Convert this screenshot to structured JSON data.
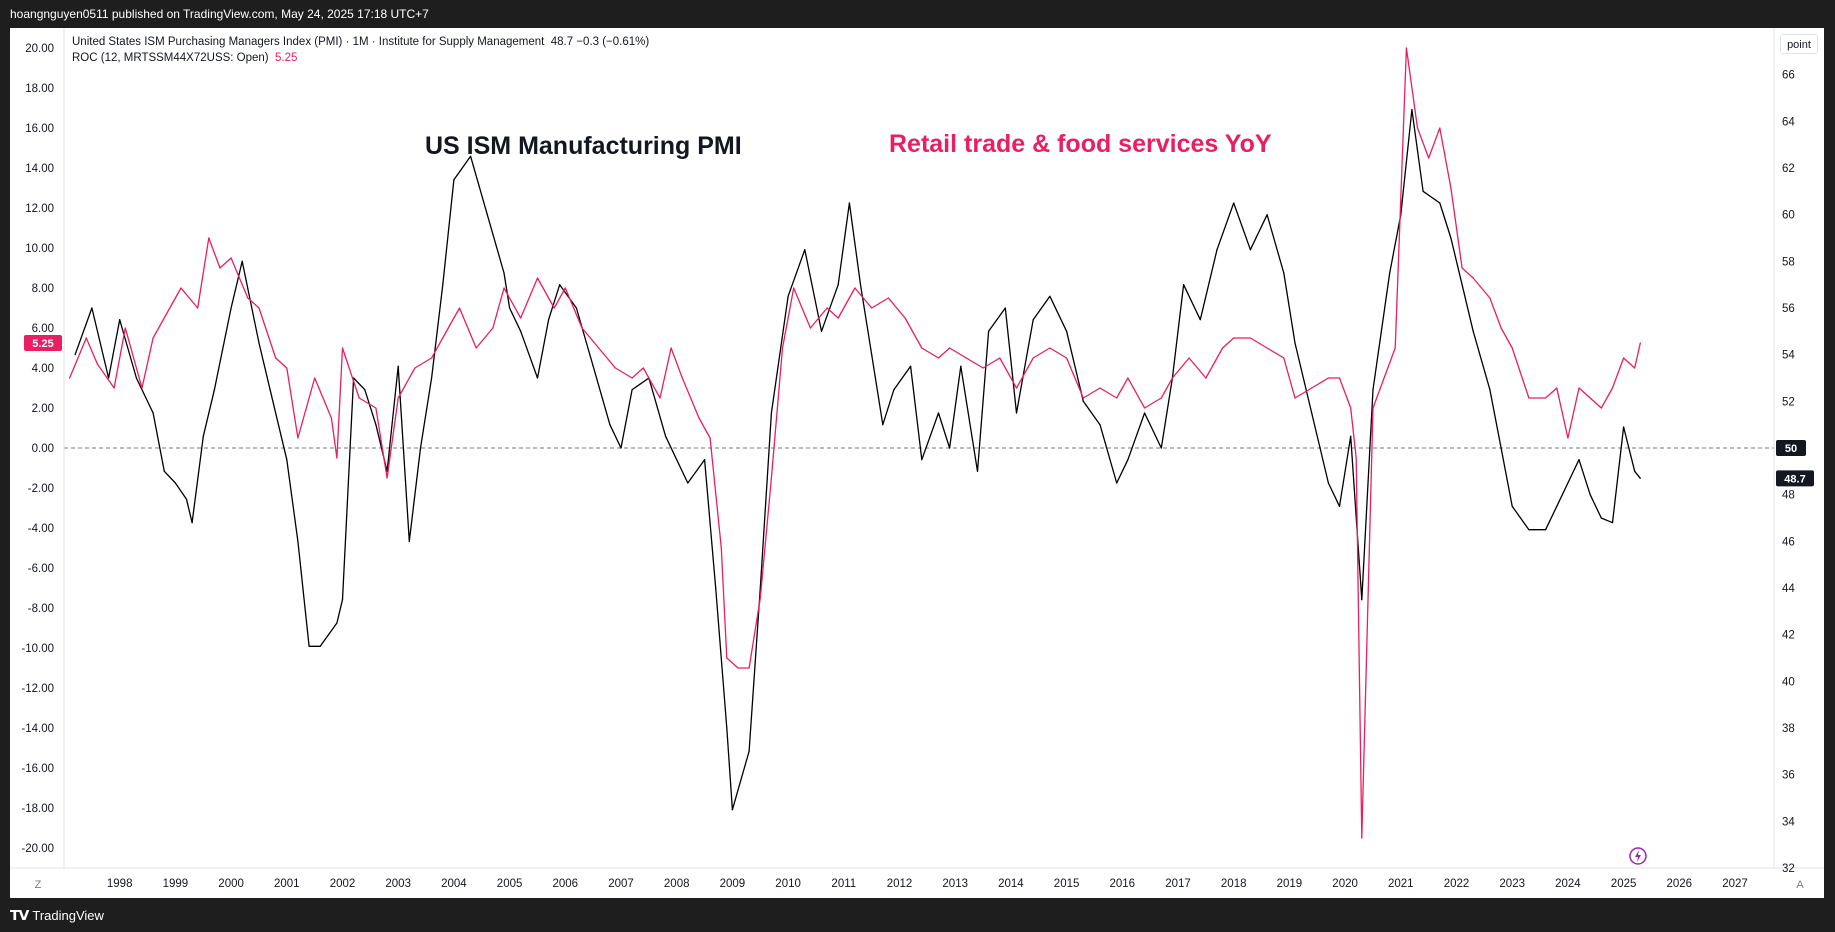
{
  "header": {
    "published": "hoangnguyen0511 published on TradingView.com, May 24, 2025 17:18 UTC+7"
  },
  "legend": {
    "line1": "United States ISM Purchasing Managers Index (PMI) · 1M · Institute for Supply Management",
    "line1_value": "48.7  −0.3 (−0.61%)",
    "line2": "ROC (12, MRTSSM44X72USS: Open)",
    "line2_value": "5.25"
  },
  "annotations": {
    "pmi_title": "US ISM Manufacturing PMI",
    "retail_title": "Retail trade & food services YoY"
  },
  "price_scale": {
    "unit_label": "point"
  },
  "footer": {
    "brand": "TradingView",
    "left_btn": "Z",
    "right_btn": "A"
  },
  "colors": {
    "pmi": "#000000",
    "roc": "#e91e63",
    "zero_line": "#787b86"
  },
  "chart_data": {
    "type": "line",
    "title": "",
    "x_axis": {
      "labels": [
        "1998",
        "1999",
        "2000",
        "2001",
        "2002",
        "2003",
        "2004",
        "2005",
        "2006",
        "2007",
        "2008",
        "2009",
        "2010",
        "2011",
        "2012",
        "2013",
        "2014",
        "2015",
        "2016",
        "2017",
        "2018",
        "2019",
        "2020",
        "2021",
        "2022",
        "2023",
        "2024",
        "2025",
        "2026",
        "2027"
      ],
      "range": [
        1997.0,
        2027.7
      ]
    },
    "left_axis": {
      "series": "ROC (12, MRTSSM44X72USS: Open)",
      "range": [
        -21,
        21
      ],
      "ticks": [
        "20.00",
        "18.00",
        "16.00",
        "14.00",
        "12.00",
        "10.00",
        "8.00",
        "6.00",
        "4.00",
        "2.00",
        "0.00",
        "-2.00",
        "-4.00",
        "-6.00",
        "-8.00",
        "-10.00",
        "-12.00",
        "-14.00",
        "-16.00",
        "-18.00",
        "-20.00"
      ],
      "last_value_badge": "5.25"
    },
    "right_axis": {
      "series": "United States ISM Purchasing Managers Index (PMI)",
      "unit": "point",
      "range": [
        32,
        68
      ],
      "ticks": [
        "66",
        "64",
        "62",
        "60",
        "58",
        "56",
        "54",
        "52",
        "50",
        "48",
        "46",
        "44",
        "42",
        "40",
        "38",
        "36",
        "34",
        "32"
      ],
      "reference_badge": "50",
      "last_value_badge": "48.7"
    },
    "reference_line": {
      "left_value": 0,
      "right_value": 50,
      "style": "dashed"
    },
    "series": [
      {
        "name": "United States ISM Purchasing Managers Index (PMI)",
        "axis": "right",
        "points": [
          [
            1997.2,
            54.0
          ],
          [
            1997.5,
            56.0
          ],
          [
            1997.8,
            53.0
          ],
          [
            1998.0,
            55.5
          ],
          [
            1998.3,
            53.0
          ],
          [
            1998.6,
            51.5
          ],
          [
            1998.8,
            49.0
          ],
          [
            1999.0,
            48.5
          ],
          [
            1999.2,
            47.8
          ],
          [
            1999.3,
            46.8
          ],
          [
            1999.5,
            50.5
          ],
          [
            1999.7,
            52.5
          ],
          [
            2000.0,
            56.0
          ],
          [
            2000.2,
            58.0
          ],
          [
            2000.5,
            54.5
          ],
          [
            2000.7,
            52.5
          ],
          [
            2001.0,
            49.5
          ],
          [
            2001.2,
            46.0
          ],
          [
            2001.4,
            41.5
          ],
          [
            2001.6,
            41.5
          ],
          [
            2001.9,
            42.5
          ],
          [
            2002.0,
            43.5
          ],
          [
            2002.2,
            53.0
          ],
          [
            2002.4,
            52.5
          ],
          [
            2002.6,
            51.0
          ],
          [
            2002.8,
            49.0
          ],
          [
            2003.0,
            53.5
          ],
          [
            2003.2,
            46.0
          ],
          [
            2003.4,
            50.0
          ],
          [
            2003.6,
            53.0
          ],
          [
            2003.8,
            57.0
          ],
          [
            2004.0,
            61.5
          ],
          [
            2004.3,
            62.5
          ],
          [
            2004.6,
            60.0
          ],
          [
            2004.9,
            57.5
          ],
          [
            2005.0,
            56.0
          ],
          [
            2005.2,
            55.0
          ],
          [
            2005.5,
            53.0
          ],
          [
            2005.7,
            55.5
          ],
          [
            2005.9,
            57.0
          ],
          [
            2006.2,
            56.0
          ],
          [
            2006.5,
            53.5
          ],
          [
            2006.8,
            51.0
          ],
          [
            2007.0,
            50.0
          ],
          [
            2007.2,
            52.5
          ],
          [
            2007.5,
            53.0
          ],
          [
            2007.8,
            50.5
          ],
          [
            2008.0,
            49.5
          ],
          [
            2008.2,
            48.5
          ],
          [
            2008.5,
            49.5
          ],
          [
            2008.7,
            44.0
          ],
          [
            2008.9,
            38.0
          ],
          [
            2009.0,
            34.5
          ],
          [
            2009.3,
            37.0
          ],
          [
            2009.5,
            44.0
          ],
          [
            2009.7,
            51.5
          ],
          [
            2010.0,
            56.5
          ],
          [
            2010.3,
            58.5
          ],
          [
            2010.6,
            55.0
          ],
          [
            2010.9,
            57.0
          ],
          [
            2011.1,
            60.5
          ],
          [
            2011.3,
            57.0
          ],
          [
            2011.5,
            54.0
          ],
          [
            2011.7,
            51.0
          ],
          [
            2011.9,
            52.5
          ],
          [
            2012.2,
            53.5
          ],
          [
            2012.4,
            49.5
          ],
          [
            2012.7,
            51.5
          ],
          [
            2012.9,
            50.0
          ],
          [
            2013.1,
            53.5
          ],
          [
            2013.4,
            49.0
          ],
          [
            2013.6,
            55.0
          ],
          [
            2013.9,
            56.0
          ],
          [
            2014.1,
            51.5
          ],
          [
            2014.4,
            55.5
          ],
          [
            2014.7,
            56.5
          ],
          [
            2015.0,
            55.0
          ],
          [
            2015.3,
            52.0
          ],
          [
            2015.6,
            51.0
          ],
          [
            2015.9,
            48.5
          ],
          [
            2016.1,
            49.5
          ],
          [
            2016.4,
            51.5
          ],
          [
            2016.7,
            50.0
          ],
          [
            2016.9,
            53.0
          ],
          [
            2017.1,
            57.0
          ],
          [
            2017.4,
            55.5
          ],
          [
            2017.7,
            58.5
          ],
          [
            2018.0,
            60.5
          ],
          [
            2018.3,
            58.5
          ],
          [
            2018.6,
            60.0
          ],
          [
            2018.9,
            57.5
          ],
          [
            2019.1,
            54.5
          ],
          [
            2019.4,
            51.5
          ],
          [
            2019.7,
            48.5
          ],
          [
            2019.9,
            47.5
          ],
          [
            2020.1,
            50.5
          ],
          [
            2020.3,
            43.5
          ],
          [
            2020.5,
            52.5
          ],
          [
            2020.8,
            57.5
          ],
          [
            2021.0,
            60.0
          ],
          [
            2021.2,
            64.5
          ],
          [
            2021.4,
            61.0
          ],
          [
            2021.7,
            60.5
          ],
          [
            2021.9,
            59.0
          ],
          [
            2022.1,
            57.0
          ],
          [
            2022.3,
            55.0
          ],
          [
            2022.6,
            52.5
          ],
          [
            2022.8,
            50.0
          ],
          [
            2023.0,
            47.5
          ],
          [
            2023.3,
            46.5
          ],
          [
            2023.6,
            46.5
          ],
          [
            2023.8,
            47.5
          ],
          [
            2024.0,
            48.5
          ],
          [
            2024.2,
            49.5
          ],
          [
            2024.4,
            48.0
          ],
          [
            2024.6,
            47.0
          ],
          [
            2024.8,
            46.8
          ],
          [
            2025.0,
            50.9
          ],
          [
            2025.2,
            49.0
          ],
          [
            2025.3,
            48.7
          ]
        ]
      },
      {
        "name": "ROC (12, MRTSSM44X72USS: Open)",
        "axis": "left",
        "points": [
          [
            1997.1,
            3.5
          ],
          [
            1997.4,
            5.5
          ],
          [
            1997.6,
            4.2
          ],
          [
            1997.9,
            3.0
          ],
          [
            1998.1,
            6.0
          ],
          [
            1998.4,
            3.0
          ],
          [
            1998.6,
            5.5
          ],
          [
            1998.9,
            7.0
          ],
          [
            1999.1,
            8.0
          ],
          [
            1999.4,
            7.0
          ],
          [
            1999.6,
            10.5
          ],
          [
            1999.8,
            9.0
          ],
          [
            2000.0,
            9.5
          ],
          [
            2000.3,
            7.5
          ],
          [
            2000.5,
            7.0
          ],
          [
            2000.8,
            4.5
          ],
          [
            2001.0,
            4.0
          ],
          [
            2001.2,
            0.5
          ],
          [
            2001.5,
            3.5
          ],
          [
            2001.8,
            1.5
          ],
          [
            2001.9,
            -0.5
          ],
          [
            2002.0,
            5.0
          ],
          [
            2002.3,
            2.5
          ],
          [
            2002.6,
            2.0
          ],
          [
            2002.8,
            -1.5
          ],
          [
            2003.0,
            2.5
          ],
          [
            2003.3,
            4.0
          ],
          [
            2003.6,
            4.5
          ],
          [
            2003.9,
            6.0
          ],
          [
            2004.1,
            7.0
          ],
          [
            2004.4,
            5.0
          ],
          [
            2004.7,
            6.0
          ],
          [
            2004.9,
            8.0
          ],
          [
            2005.2,
            6.5
          ],
          [
            2005.5,
            8.5
          ],
          [
            2005.8,
            7.0
          ],
          [
            2006.0,
            8.0
          ],
          [
            2006.3,
            6.0
          ],
          [
            2006.6,
            5.0
          ],
          [
            2006.9,
            4.0
          ],
          [
            2007.2,
            3.5
          ],
          [
            2007.4,
            4.0
          ],
          [
            2007.7,
            2.5
          ],
          [
            2007.9,
            5.0
          ],
          [
            2008.1,
            3.5
          ],
          [
            2008.4,
            1.5
          ],
          [
            2008.6,
            0.5
          ],
          [
            2008.8,
            -5.0
          ],
          [
            2008.9,
            -10.5
          ],
          [
            2009.1,
            -11.0
          ],
          [
            2009.3,
            -11.0
          ],
          [
            2009.5,
            -7.5
          ],
          [
            2009.7,
            -1.5
          ],
          [
            2009.9,
            5.0
          ],
          [
            2010.1,
            8.0
          ],
          [
            2010.4,
            6.0
          ],
          [
            2010.7,
            7.0
          ],
          [
            2010.9,
            6.5
          ],
          [
            2011.2,
            8.0
          ],
          [
            2011.5,
            7.0
          ],
          [
            2011.8,
            7.5
          ],
          [
            2012.1,
            6.5
          ],
          [
            2012.4,
            5.0
          ],
          [
            2012.7,
            4.5
          ],
          [
            2012.9,
            5.0
          ],
          [
            2013.2,
            4.5
          ],
          [
            2013.5,
            4.0
          ],
          [
            2013.8,
            4.5
          ],
          [
            2014.1,
            3.0
          ],
          [
            2014.4,
            4.5
          ],
          [
            2014.7,
            5.0
          ],
          [
            2015.0,
            4.5
          ],
          [
            2015.3,
            2.5
          ],
          [
            2015.6,
            3.0
          ],
          [
            2015.9,
            2.5
          ],
          [
            2016.1,
            3.5
          ],
          [
            2016.4,
            2.0
          ],
          [
            2016.7,
            2.5
          ],
          [
            2016.9,
            3.5
          ],
          [
            2017.2,
            4.5
          ],
          [
            2017.5,
            3.5
          ],
          [
            2017.8,
            5.0
          ],
          [
            2018.0,
            5.5
          ],
          [
            2018.3,
            5.5
          ],
          [
            2018.6,
            5.0
          ],
          [
            2018.9,
            4.5
          ],
          [
            2019.1,
            2.5
          ],
          [
            2019.4,
            3.0
          ],
          [
            2019.7,
            3.5
          ],
          [
            2019.9,
            3.5
          ],
          [
            2020.1,
            2.0
          ],
          [
            2020.2,
            -0.5
          ],
          [
            2020.3,
            -19.5
          ],
          [
            2020.5,
            2.0
          ],
          [
            2020.7,
            3.5
          ],
          [
            2020.9,
            5.0
          ],
          [
            2021.1,
            20.0
          ],
          [
            2021.3,
            16.0
          ],
          [
            2021.5,
            14.5
          ],
          [
            2021.7,
            16.0
          ],
          [
            2021.9,
            13.0
          ],
          [
            2022.1,
            9.0
          ],
          [
            2022.3,
            8.5
          ],
          [
            2022.6,
            7.5
          ],
          [
            2022.8,
            6.0
          ],
          [
            2023.0,
            5.0
          ],
          [
            2023.3,
            2.5
          ],
          [
            2023.6,
            2.5
          ],
          [
            2023.8,
            3.0
          ],
          [
            2024.0,
            0.5
          ],
          [
            2024.2,
            3.0
          ],
          [
            2024.4,
            2.5
          ],
          [
            2024.6,
            2.0
          ],
          [
            2024.8,
            3.0
          ],
          [
            2025.0,
            4.5
          ],
          [
            2025.2,
            4.0
          ],
          [
            2025.3,
            5.25
          ]
        ]
      }
    ]
  }
}
